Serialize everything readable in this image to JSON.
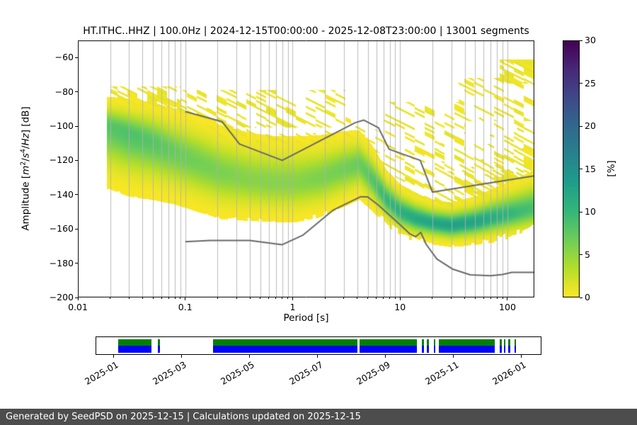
{
  "footer": {
    "text": "Generated by SeedPSD on 2025-12-15 | Calculations updated on 2025-12-15"
  },
  "chart_data": [
    {
      "type": "heatmap",
      "name": "ppsd-probability-density",
      "title": "HT.ITHC..HHZ | 100.0Hz | 2024-12-15T00:00:00 - 2025-12-08T23:00:00 | 13001 segments",
      "xlabel": "Period [s]",
      "ylabel": "Amplitude [m²/s⁴/Hz] [dB]",
      "ylabel_parts": [
        {
          "t": "Amplitude [",
          "style": "plain"
        },
        {
          "t": "m",
          "style": "italic"
        },
        {
          "t": "2",
          "style": "sup"
        },
        {
          "t": "/",
          "style": "plain"
        },
        {
          "t": "s",
          "style": "italic"
        },
        {
          "t": "4",
          "style": "sup"
        },
        {
          "t": "/",
          "style": "plain"
        },
        {
          "t": "Hz",
          "style": "italic"
        },
        {
          "t": "] [dB]",
          "style": "plain"
        }
      ],
      "x_scale": "log",
      "x_range": [
        0.01,
        178
      ],
      "x_ticks": [
        {
          "v": 0.01,
          "label": "0.01"
        },
        {
          "v": 0.1,
          "label": "0.1"
        },
        {
          "v": 1,
          "label": "1"
        },
        {
          "v": 10,
          "label": "10"
        },
        {
          "v": 100,
          "label": "100"
        }
      ],
      "y_range": [
        -200,
        -50
      ],
      "y_ticks": [
        {
          "v": -60,
          "label": "−60"
        },
        {
          "v": -80,
          "label": "−80"
        },
        {
          "v": -100,
          "label": "−100"
        },
        {
          "v": -120,
          "label": "−120"
        },
        {
          "v": -140,
          "label": "−140"
        },
        {
          "v": -160,
          "label": "−160"
        },
        {
          "v": -180,
          "label": "−180"
        },
        {
          "v": -200,
          "label": "−200"
        }
      ],
      "grid": {
        "vertical_log_minor": true,
        "horizontal": false,
        "color": "#b0b0b0"
      },
      "colorbar": {
        "label": "[%]",
        "min": 0,
        "max": 30,
        "ticks": [
          0,
          5,
          10,
          15,
          20,
          25,
          30
        ],
        "colormap": "viridis reversed (yellow = 0%, dark purple = 30%)"
      },
      "colormap_stops": [
        [
          0,
          "#440154"
        ],
        [
          0.111,
          "#482878"
        ],
        [
          0.222,
          "#3e4989"
        ],
        [
          0.333,
          "#31688e"
        ],
        [
          0.444,
          "#26828e"
        ],
        [
          0.556,
          "#1f9e89"
        ],
        [
          0.667,
          "#35b779"
        ],
        [
          0.778,
          "#6ece58"
        ],
        [
          0.889,
          "#b5de2b"
        ],
        [
          1,
          "#fde725"
        ]
      ],
      "ppsd_distribution": {
        "note": "Probability cloud model read from the plot: per period, modal amplitude (dB), spread above/below mode, peak probability (%), and ragged top/bottom extents of the colored region.",
        "periods_s": [
          0.02,
          0.03,
          0.05,
          0.08,
          0.13,
          0.22,
          0.4,
          0.7,
          1.1,
          1.8,
          3.0,
          4.2,
          5.5,
          7.5,
          10,
          14,
          20,
          30,
          50,
          80,
          130,
          200
        ],
        "mode_db": [
          -100,
          -104,
          -109,
          -115,
          -121,
          -127,
          -131,
          -133,
          -133,
          -130,
          -125,
          -122,
          -131,
          -143,
          -150,
          -154,
          -156.5,
          -158,
          -156,
          -153,
          -150,
          -147
        ],
        "sigma_up_db": [
          6,
          7,
          8,
          9,
          10,
          10,
          10,
          10,
          10,
          9,
          8,
          7,
          7,
          6,
          5.5,
          5,
          4.5,
          4.5,
          5,
          6,
          7,
          8
        ],
        "sigma_down_db": [
          13,
          13,
          12,
          11,
          10.5,
          10,
          9,
          8.5,
          8.5,
          8.5,
          8,
          7.5,
          6.5,
          5.5,
          5,
          4.5,
          4.2,
          4.2,
          4.5,
          5,
          5.5,
          6
        ],
        "peak_percent": [
          8,
          8.5,
          8,
          7,
          6.5,
          6,
          5.5,
          5.5,
          5.5,
          6,
          6.5,
          7,
          8,
          10,
          11,
          12,
          12.5,
          13,
          12.5,
          11,
          9.5,
          8.5
        ],
        "top_db": [
          -82,
          -80,
          -79,
          -79,
          -80,
          -83,
          -86,
          -87,
          -88,
          -88,
          -90,
          -92,
          -95,
          -100,
          -102,
          -100,
          -98,
          -96,
          -92,
          -80,
          -68,
          -62
        ],
        "bottom_db": [
          -138,
          -142,
          -146,
          -149,
          -152,
          -154,
          -156,
          -158,
          -157,
          -153,
          -149,
          -149,
          -151,
          -156,
          -162,
          -166,
          -168,
          -170,
          -170,
          -166,
          -161,
          -156
        ]
      },
      "event_patches": [
        {
          "t": [
            85,
            206
          ],
          "a": [
            -75,
            -61
          ],
          "d": 0.8
        },
        {
          "t": [
            35,
            206
          ],
          "a": [
            -97,
            -72
          ],
          "d": 0.22
        },
        {
          "t": [
            7,
            40
          ],
          "a": [
            -120,
            -86
          ],
          "d": 0.2
        },
        {
          "t": [
            0.09,
            3.5
          ],
          "a": [
            -101,
            -79
          ],
          "d": 0.25
        },
        {
          "t": [
            0.02,
            0.09
          ],
          "a": [
            -89,
            -77
          ],
          "d": 0.5
        }
      ],
      "noise_models": {
        "color": "#686868",
        "nhnm": {
          "name": "Peterson NHNM (upper gray line)",
          "points": [
            [
              0.1,
              -91.5
            ],
            [
              0.22,
              -97.4
            ],
            [
              0.32,
              -110.5
            ],
            [
              0.8,
              -120
            ],
            [
              3.8,
              -98.1
            ],
            [
              4.6,
              -96.5
            ],
            [
              6.3,
              -101
            ],
            [
              7.9,
              -113.5
            ],
            [
              15.4,
              -120
            ],
            [
              20,
              -138.5
            ],
            [
              100,
              -131.5
            ],
            [
              200,
              -128.5
            ]
          ]
        },
        "nlnm": {
          "name": "Peterson NLNM (lower gray line)",
          "points": [
            [
              0.1,
              -167.5
            ],
            [
              0.17,
              -166.7
            ],
            [
              0.4,
              -166.7
            ],
            [
              0.8,
              -169.2
            ],
            [
              1.24,
              -163.7
            ],
            [
              2.4,
              -148.9
            ],
            [
              4.3,
              -141.2
            ],
            [
              5,
              -141.3
            ],
            [
              6.3,
              -146.2
            ],
            [
              10,
              -157.5
            ],
            [
              12.4,
              -163
            ],
            [
              14,
              -164.5
            ],
            [
              15.6,
              -162
            ],
            [
              17.5,
              -169
            ],
            [
              22,
              -177.5
            ],
            [
              31,
              -183.5
            ],
            [
              45,
              -186.8
            ],
            [
              70,
              -187.3
            ],
            [
              90,
              -186.6
            ],
            [
              110,
              -185.3
            ],
            [
              200,
              -185.4
            ]
          ]
        }
      }
    },
    {
      "type": "timeline",
      "name": "data-availability",
      "row_colors": {
        "top": "#008000",
        "bottom": "#0000ff"
      },
      "segments": [
        [
          0.049,
          0.125
        ],
        [
          0.139,
          0.143
        ],
        [
          0.263,
          0.588
        ],
        [
          0.593,
          0.722
        ],
        [
          0.733,
          0.737
        ],
        [
          0.744,
          0.748
        ],
        [
          0.759,
          0.763
        ],
        [
          0.771,
          0.897
        ],
        [
          0.908,
          0.912
        ],
        [
          0.917,
          0.921
        ],
        [
          0.927,
          0.931
        ],
        [
          0.941,
          0.945
        ]
      ],
      "x_ticks": [
        {
          "f": 0.04,
          "label": "2025-01"
        },
        {
          "f": 0.193,
          "label": "2025-03"
        },
        {
          "f": 0.345,
          "label": "2025-05"
        },
        {
          "f": 0.498,
          "label": "2025-07"
        },
        {
          "f": 0.65,
          "label": "2025-09"
        },
        {
          "f": 0.803,
          "label": "2025-11"
        },
        {
          "f": 0.955,
          "label": "2026-01"
        }
      ]
    }
  ]
}
